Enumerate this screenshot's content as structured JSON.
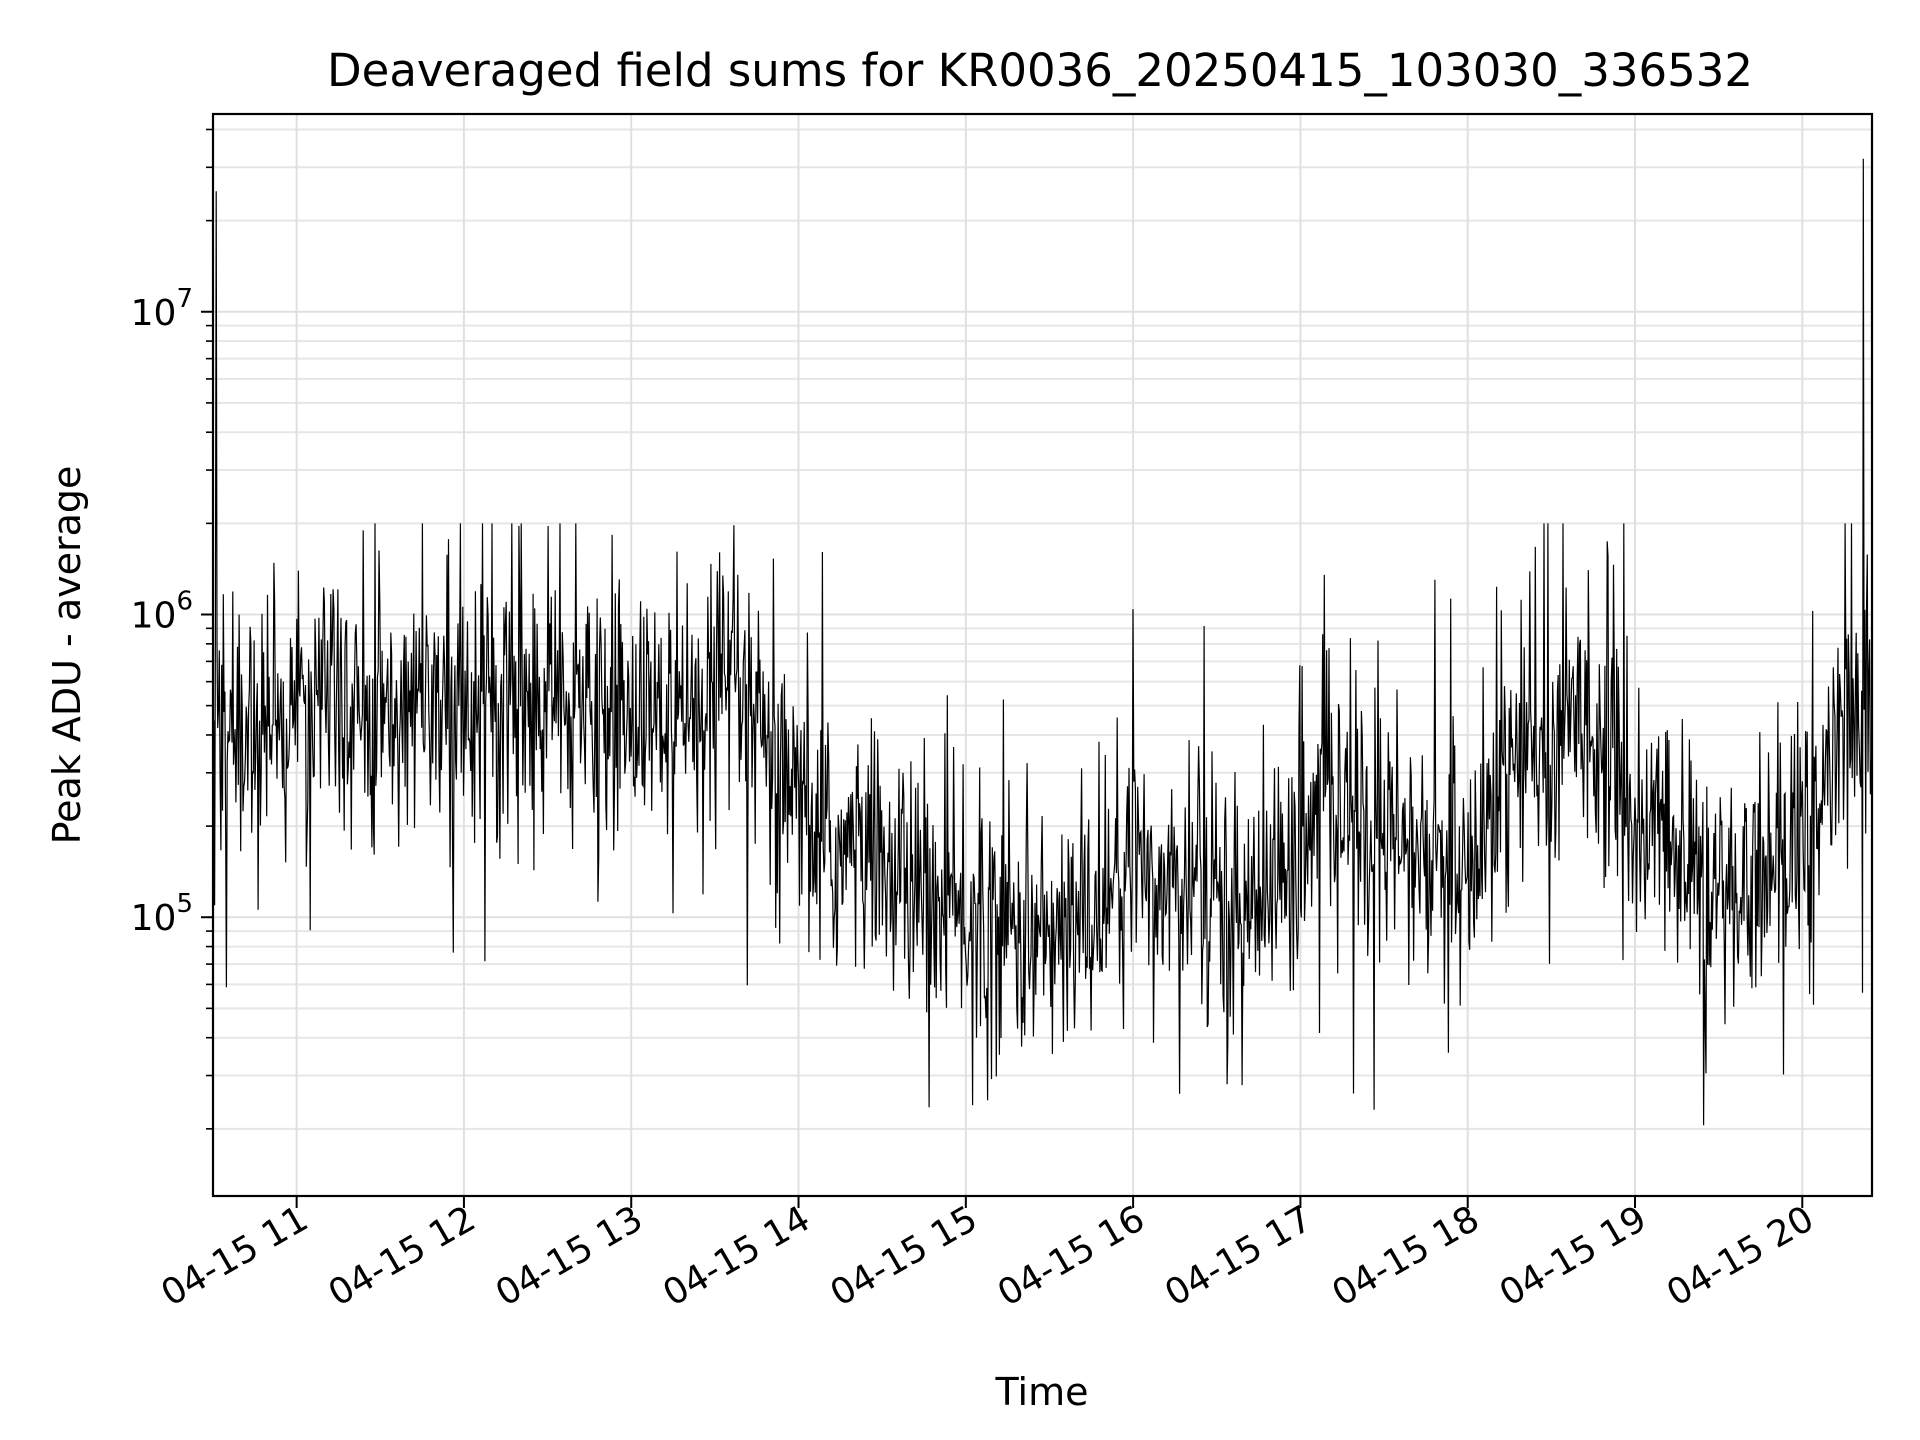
{
  "chart_data": {
    "type": "line",
    "title": "Deaveraged field sums for KR0036_20250415_103030_336532",
    "xlabel": "Time",
    "ylabel": "Peak ADU - average",
    "x_scale": "time",
    "y_scale": "log",
    "xlim": [
      "2025-04-15 10:30",
      "2025-04-15 20:25"
    ],
    "ylim": [
      12000,
      45000000
    ],
    "x_ticks": [
      "04-15 11",
      "04-15 12",
      "04-15 13",
      "04-15 14",
      "04-15 15",
      "04-15 16",
      "04-15 17",
      "04-15 18",
      "04-15 19",
      "04-15 20"
    ],
    "y_ticks": [
      {
        "base": "10",
        "exp": "5",
        "value": 100000
      },
      {
        "base": "10",
        "exp": "6",
        "value": 1000000
      },
      {
        "base": "10",
        "exp": "7",
        "value": 10000000
      }
    ],
    "grid": "major and minor",
    "line_color": "#000000",
    "series": [
      {
        "x": [
          "2025-04-15 10:30",
          "2025-04-15 10:32",
          "2025-04-15 10:45",
          "2025-04-15 11:00",
          "2025-04-15 11:15",
          "2025-04-15 11:30",
          "2025-04-15 11:45",
          "2025-04-15 12:00",
          "2025-04-15 12:15",
          "2025-04-15 12:30",
          "2025-04-15 12:45",
          "2025-04-15 13:00",
          "2025-04-15 13:15",
          "2025-04-15 13:30",
          "2025-04-15 13:38",
          "2025-04-15 13:50",
          "2025-04-15 14:00",
          "2025-04-15 14:15",
          "2025-04-15 14:30",
          "2025-04-15 14:45",
          "2025-04-15 15:00",
          "2025-04-15 15:15",
          "2025-04-15 15:30",
          "2025-04-15 15:45",
          "2025-04-15 16:00",
          "2025-04-15 16:15",
          "2025-04-15 16:30",
          "2025-04-15 16:45",
          "2025-04-15 17:00",
          "2025-04-15 17:10",
          "2025-04-15 17:30",
          "2025-04-15 17:45",
          "2025-04-15 18:00",
          "2025-04-15 18:15",
          "2025-04-15 18:30",
          "2025-04-15 18:40",
          "2025-04-15 19:00",
          "2025-04-15 19:15",
          "2025-04-15 19:30",
          "2025-04-15 19:45",
          "2025-04-15 20:00",
          "2025-04-15 20:15",
          "2025-04-15 20:25"
        ],
        "values": [
          350000,
          400000,
          420000,
          500000,
          470000,
          520000,
          500000,
          560000,
          520000,
          500000,
          480000,
          470000,
          430000,
          420000,
          550000,
          320000,
          220000,
          160000,
          160000,
          110000,
          100000,
          95000,
          80000,
          100000,
          150000,
          130000,
          110000,
          120000,
          150000,
          250000,
          180000,
          150000,
          120000,
          400000,
          280000,
          550000,
          200000,
          170000,
          110000,
          140000,
          200000,
          400000,
          500000
        ]
      }
    ],
    "spikes": [
      {
        "x": "2025-04-15 10:31",
        "value": 25000000
      },
      {
        "x": "2025-04-15 20:22",
        "value": 32000000
      }
    ]
  }
}
